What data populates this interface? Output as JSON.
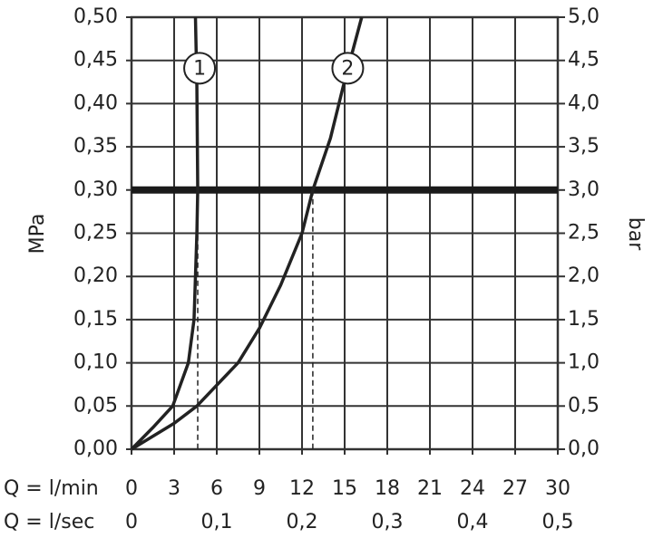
{
  "chart_data": {
    "type": "line",
    "ylabel": "MPa",
    "y2label": "bar",
    "xlabel": "Q = l/min",
    "x2label": "Q = l/sec",
    "xlim": [
      0,
      30
    ],
    "xticks": [
      0,
      3,
      6,
      9,
      12,
      15,
      18,
      21,
      24,
      27,
      30
    ],
    "x2lim": [
      0,
      0.5
    ],
    "x2ticks": [
      0,
      {
        "value": 0.1,
        "label": "0,1"
      },
      {
        "value": 0.2,
        "label": "0,2"
      },
      {
        "value": 0.3,
        "label": "0,3"
      },
      {
        "value": 0.4,
        "label": "0,4"
      },
      {
        "value": 0.5,
        "label": "0,5"
      }
    ],
    "ylim": [
      0,
      0.5
    ],
    "yticks": [
      {
        "value": 0,
        "label": "0,00"
      },
      {
        "value": 0.05,
        "label": "0,05"
      },
      {
        "value": 0.1,
        "label": "0,10"
      },
      {
        "value": 0.15,
        "label": "0,15"
      },
      {
        "value": 0.2,
        "label": "0,20"
      },
      {
        "value": 0.25,
        "label": "0,25"
      },
      {
        "value": 0.3,
        "label": "0,30"
      },
      {
        "value": 0.35,
        "label": "0,35"
      },
      {
        "value": 0.4,
        "label": "0,40"
      },
      {
        "value": 0.45,
        "label": "0,45"
      },
      {
        "value": 0.5,
        "label": "0,50"
      }
    ],
    "y2lim": [
      0,
      5
    ],
    "y2ticks": [
      {
        "value": 0,
        "label": "0,0"
      },
      {
        "value": 0.5,
        "label": "0,5"
      },
      {
        "value": 1,
        "label": "1,0"
      },
      {
        "value": 1.5,
        "label": "1,5"
      },
      {
        "value": 2,
        "label": "2,0"
      },
      {
        "value": 2.5,
        "label": "2,5"
      },
      {
        "value": 3,
        "label": "3,0"
      },
      {
        "value": 3.5,
        "label": "3,5"
      },
      {
        "value": 4,
        "label": "4,0"
      },
      {
        "value": 4.5,
        "label": "4,5"
      },
      {
        "value": 5,
        "label": "5,0"
      }
    ],
    "grid": true,
    "reference_line": 0.3,
    "drop_lines_x": [
      4.66,
      12.76
    ],
    "series": [
      {
        "name": "1",
        "color": "#222222",
        "x": [
          0,
          1.5,
          2.9,
          4.0,
          4.4,
          4.6,
          4.66,
          4.6,
          4.5
        ],
        "values": [
          0,
          0.025,
          0.05,
          0.1,
          0.15,
          0.25,
          0.3,
          0.42,
          0.5
        ]
      },
      {
        "name": "2",
        "color": "#222222",
        "x": [
          0,
          3,
          4.6,
          7.5,
          9,
          10.5,
          12,
          12.76,
          14,
          14.9,
          16.2
        ],
        "values": [
          0,
          0.03,
          0.05,
          0.1,
          0.14,
          0.19,
          0.25,
          0.3,
          0.36,
          0.42,
          0.5
        ]
      }
    ]
  }
}
